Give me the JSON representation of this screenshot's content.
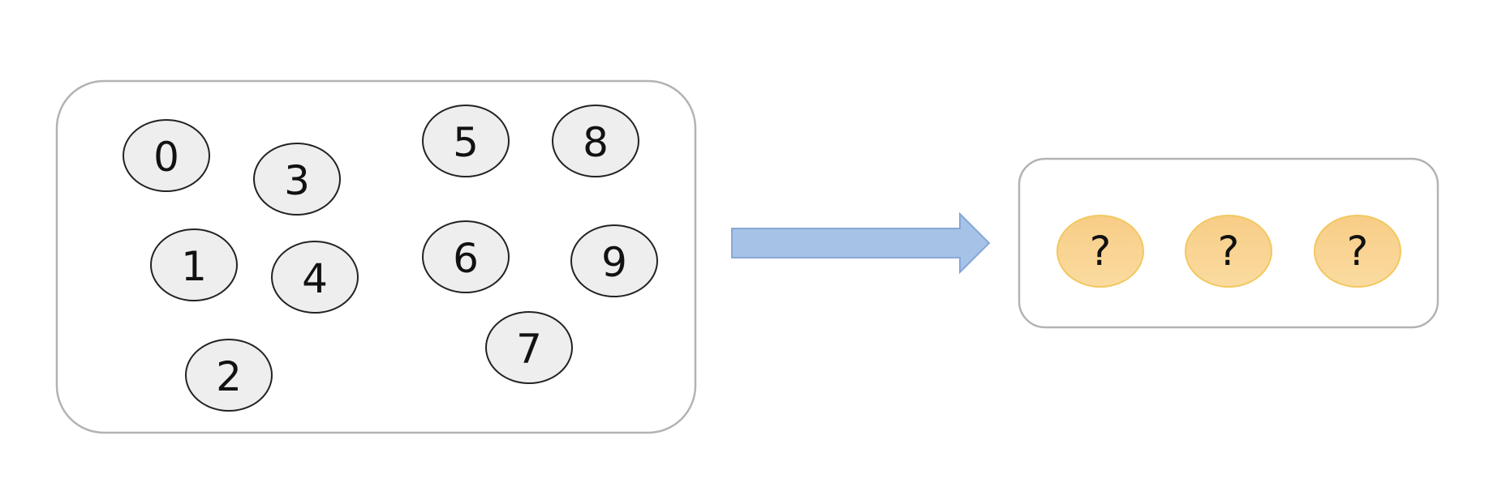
{
  "pool": {
    "border_color": "#b3b3b3",
    "ball_fill": "#eeeeee",
    "ball_stroke": "#222222",
    "balls": [
      {
        "label": "0"
      },
      {
        "label": "3"
      },
      {
        "label": "5"
      },
      {
        "label": "8"
      },
      {
        "label": "1"
      },
      {
        "label": "4"
      },
      {
        "label": "6"
      },
      {
        "label": "9"
      },
      {
        "label": "7"
      },
      {
        "label": "2"
      }
    ]
  },
  "arrow": {
    "icon": "right-arrow-icon",
    "fill": "#a6c2e6",
    "stroke": "#86a8d6"
  },
  "selection": {
    "border_color": "#b3b3b3",
    "slot_fill": "#f9d492",
    "slot_stroke": "#f3c860",
    "slots": [
      {
        "label": "?"
      },
      {
        "label": "?"
      },
      {
        "label": "?"
      }
    ]
  }
}
